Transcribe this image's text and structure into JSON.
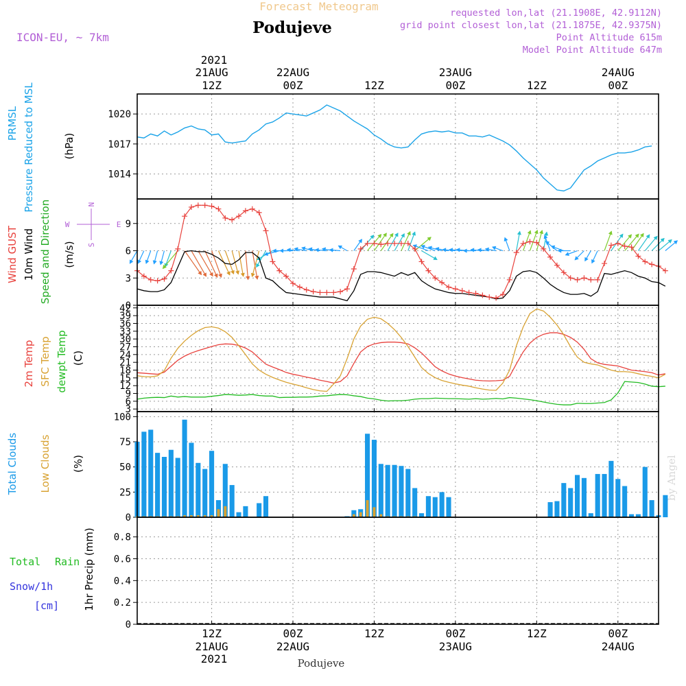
{
  "header": {
    "title": "Forecast Meteogram",
    "location": "Podujeve",
    "model": "ICON-EU, ~ 7km",
    "requested": "requested lon,lat (21.1908E, 42.9112N)",
    "grid_point": "grid point closest lon,lat (21.1875E, 42.9375N)",
    "point_altitude": "Point Altitude 615m",
    "model_altitude": "Model Point Altitude 647m",
    "credit": "by Angel",
    "footer_location": "Podujeve"
  },
  "colors": {
    "pressure": "#1aa3e8",
    "gust": "#e8413c",
    "wind": "#000000",
    "direction": "#22aa22",
    "temp2m": "#e8413c",
    "sfc": "#d8a232",
    "dewpt": "#22bb22",
    "total_clouds": "#1a9ae8",
    "low_clouds": "#d8a232",
    "rain": "#22bb22",
    "snow": "#3333dd",
    "legend_purple": "#b25fd6",
    "title_orange": "#f0c88c"
  },
  "time_axis": {
    "start_hour": 0,
    "end_hour": 77,
    "top_year": "2021",
    "bottom_year": "2021",
    "ticks": [
      {
        "hour": 11,
        "top": [
          "21AUG",
          "12Z"
        ],
        "bottom": [
          "12Z",
          "21AUG"
        ]
      },
      {
        "hour": 23,
        "top": [
          "22AUG",
          "00Z"
        ],
        "bottom": [
          "00Z",
          "22AUG"
        ]
      },
      {
        "hour": 35,
        "top": [
          "12Z"
        ],
        "bottom": [
          "12Z"
        ]
      },
      {
        "hour": 47,
        "top": [
          "23AUG",
          "00Z"
        ],
        "bottom": [
          "00Z",
          "23AUG"
        ]
      },
      {
        "hour": 59,
        "top": [
          "12Z"
        ],
        "bottom": [
          "12Z"
        ]
      },
      {
        "hour": 71,
        "top": [
          "24AUG",
          "00Z"
        ],
        "bottom": [
          "00Z",
          "24AUG"
        ]
      }
    ]
  },
  "chart_data": [
    {
      "type": "line",
      "id": "pressure",
      "title": "PRMSL Pressure Reduced to MSL",
      "ylabel_lines": [
        "PRMSL",
        "Pressure Reduced to MSL"
      ],
      "unit": "(hPa)",
      "ylim": [
        1011.5,
        1022
      ],
      "yticks": [
        1014,
        1017,
        1020
      ],
      "series": [
        {
          "name": "PRMSL",
          "x_start": 0,
          "x_step": 1,
          "values": [
            1017.7,
            1017.6,
            1018.0,
            1017.8,
            1018.3,
            1017.9,
            1018.2,
            1018.6,
            1018.8,
            1018.5,
            1018.4,
            1017.9,
            1018.0,
            1017.2,
            1017.1,
            1017.2,
            1017.3,
            1018.0,
            1018.4,
            1019.0,
            1019.2,
            1019.6,
            1020.1,
            1020.0,
            1019.9,
            1019.8,
            1020.1,
            1020.4,
            1020.9,
            1020.6,
            1020.3,
            1019.8,
            1019.3,
            1018.9,
            1018.5,
            1017.9,
            1017.5,
            1017.0,
            1016.7,
            1016.6,
            1016.7,
            1017.4,
            1018.0,
            1018.2,
            1018.3,
            1018.2,
            1018.3,
            1018.1,
            1018.1,
            1017.8,
            1017.8,
            1017.7,
            1017.9,
            1017.6,
            1017.3,
            1016.9,
            1016.3,
            1015.6,
            1015.0,
            1014.4,
            1013.6,
            1013.0,
            1012.4,
            1012.3,
            1012.6,
            1013.5,
            1014.4,
            1014.8,
            1015.3,
            1015.6,
            1015.9,
            1016.1,
            1016.1,
            1016.2,
            1016.4,
            1016.7,
            1016.8
          ]
        }
      ]
    },
    {
      "type": "line",
      "id": "wind",
      "title": "Wind GUST, 10m Wind Speed and Direction",
      "ylabel_lines": [
        "Wind GUST",
        "10m Wind",
        "Speed and Direction"
      ],
      "unit": "(m/s)",
      "compass": [
        "N",
        "W",
        "E",
        "S"
      ],
      "ylim": [
        0,
        11.7
      ],
      "yticks": [
        0,
        3,
        6,
        9
      ],
      "series": [
        {
          "name": "Wind GUST",
          "x_start": 0,
          "x_step": 1,
          "markers": "plus",
          "values": [
            3.8,
            3.2,
            2.8,
            2.7,
            2.9,
            3.8,
            6.2,
            9.8,
            10.8,
            11.0,
            11.0,
            10.9,
            10.6,
            9.6,
            9.4,
            9.8,
            10.4,
            10.6,
            10.2,
            8.2,
            4.8,
            3.8,
            3.2,
            2.4,
            2.0,
            1.7,
            1.5,
            1.4,
            1.4,
            1.4,
            1.5,
            1.8,
            4.0,
            6.2,
            6.8,
            6.8,
            6.7,
            6.8,
            6.8,
            6.8,
            6.8,
            6.2,
            4.8,
            3.8,
            3.0,
            2.5,
            2.0,
            1.8,
            1.6,
            1.4,
            1.3,
            1.1,
            0.9,
            0.8,
            1.2,
            2.8,
            5.8,
            6.8,
            7.0,
            6.9,
            6.2,
            5.3,
            4.4,
            3.6,
            3.0,
            2.8,
            3.0,
            2.8,
            2.8,
            4.6,
            6.6,
            6.8,
            6.5,
            6.4,
            5.4,
            4.8,
            4.5,
            4.3,
            3.8
          ]
        },
        {
          "name": "10m Wind",
          "x_start": 0,
          "x_step": 1,
          "values": [
            1.8,
            1.6,
            1.5,
            1.5,
            1.7,
            2.5,
            4.2,
            5.9,
            6.0,
            5.9,
            5.9,
            5.6,
            5.2,
            4.6,
            4.5,
            5.0,
            5.8,
            5.8,
            5.2,
            3.0,
            2.7,
            2.0,
            1.4,
            1.3,
            1.2,
            1.1,
            1.0,
            0.9,
            0.9,
            0.9,
            0.7,
            0.5,
            1.6,
            3.4,
            3.7,
            3.7,
            3.6,
            3.4,
            3.2,
            3.6,
            3.3,
            3.6,
            2.7,
            2.2,
            1.8,
            1.6,
            1.4,
            1.3,
            1.3,
            1.2,
            1.1,
            1.0,
            0.9,
            0.7,
            0.8,
            1.6,
            3.2,
            3.7,
            3.8,
            3.6,
            3.0,
            2.3,
            1.8,
            1.4,
            1.2,
            1.2,
            1.3,
            1.0,
            1.5,
            3.5,
            3.4,
            3.6,
            3.8,
            3.6,
            3.2,
            3.0,
            2.6,
            2.5,
            2.1
          ]
        },
        {
          "name": "Direction",
          "baseline": 6,
          "x_start": 0,
          "x_step": 1,
          "deg": [
            30,
            25,
            20,
            15,
            15,
            20,
            40,
            325,
            330,
            330,
            335,
            340,
            335,
            340,
            345,
            350,
            355,
            350,
            15,
            30,
            60,
            75,
            90,
            90,
            95,
            100,
            105,
            100,
            95,
            100,
            95,
            120,
            215,
            220,
            220,
            215,
            215,
            210,
            210,
            205,
            200,
            230,
            300,
            110,
            110,
            105,
            100,
            95,
            95,
            95,
            90,
            95,
            95,
            100,
            110,
            160,
            190,
            200,
            200,
            195,
            190,
            160,
            130,
            110,
            90,
            70,
            45,
            30,
            25,
            200,
            215,
            220,
            220,
            215,
            215,
            220,
            225,
            230,
            230
          ]
        }
      ]
    },
    {
      "type": "line",
      "id": "temperature",
      "title": "2m Temp, SFC Temp, dewpt Temp",
      "ylabel_lines": [
        "2m Temp",
        "SFC Temp",
        "dewpt Temp"
      ],
      "unit": "(C)",
      "ylim": [
        2,
        43
      ],
      "yticks": [
        3,
        6,
        9,
        12,
        15,
        18,
        21,
        24,
        27,
        30,
        33,
        36,
        39,
        42
      ],
      "series": [
        {
          "name": "2m Temp",
          "x_start": 0,
          "x_step": 1,
          "values": [
            17.0,
            16.8,
            16.6,
            16.4,
            17.2,
            19.5,
            21.8,
            23.4,
            24.6,
            25.5,
            26.3,
            27.1,
            27.8,
            28.1,
            28.0,
            27.5,
            26.5,
            25.0,
            22.6,
            20.3,
            19.2,
            18.2,
            17.1,
            16.4,
            15.9,
            15.3,
            14.8,
            14.1,
            13.6,
            13.0,
            13.6,
            15.8,
            20.6,
            25.0,
            27.1,
            28.1,
            28.6,
            28.8,
            28.8,
            28.6,
            28.1,
            26.6,
            24.6,
            22.0,
            19.3,
            17.7,
            16.5,
            15.7,
            15.1,
            14.6,
            14.1,
            13.9,
            13.8,
            13.9,
            14.1,
            15.6,
            20.4,
            25.0,
            28.4,
            30.6,
            31.8,
            32.4,
            32.4,
            31.8,
            30.6,
            28.8,
            26.0,
            22.4,
            20.8,
            20.2,
            19.9,
            19.6,
            18.8,
            18.0,
            17.7,
            17.4,
            17.0,
            16.1,
            16.6
          ]
        },
        {
          "name": "SFC Temp",
          "x_start": 0,
          "x_step": 1,
          "values": [
            15.8,
            15.5,
            15.4,
            15.8,
            17.8,
            22.6,
            26.4,
            29.2,
            31.4,
            33.2,
            34.4,
            34.7,
            34.2,
            32.8,
            30.6,
            27.4,
            24.0,
            20.4,
            18.0,
            16.4,
            15.2,
            14.2,
            13.3,
            12.6,
            12.0,
            11.2,
            10.5,
            10.0,
            9.8,
            12.6,
            15.8,
            22.4,
            30.0,
            35.0,
            37.6,
            38.4,
            37.8,
            36.0,
            33.6,
            30.6,
            27.1,
            23.0,
            19.0,
            16.7,
            15.1,
            14.0,
            13.3,
            12.7,
            12.2,
            11.8,
            11.2,
            10.7,
            10.3,
            10.2,
            13.0,
            18.0,
            27.4,
            34.6,
            39.8,
            41.6,
            40.8,
            38.4,
            35.4,
            31.6,
            27.0,
            23.0,
            21.0,
            20.4,
            20.0,
            19.0,
            18.0,
            17.4,
            17.4,
            17.2,
            16.6,
            16.0,
            15.6,
            15.0,
            16.4
          ]
        },
        {
          "name": "dewpt Temp",
          "x_start": 0,
          "x_step": 1,
          "values": [
            6.8,
            7.2,
            7.4,
            7.5,
            7.4,
            8.0,
            7.6,
            7.8,
            7.6,
            7.6,
            7.6,
            7.9,
            8.2,
            8.6,
            8.5,
            8.3,
            8.4,
            8.6,
            8.2,
            8.0,
            8.0,
            7.4,
            7.5,
            7.5,
            7.6,
            7.6,
            7.7,
            8.0,
            8.1,
            8.4,
            8.6,
            8.5,
            8.1,
            7.8,
            7.2,
            6.9,
            6.4,
            6.1,
            6.2,
            6.2,
            6.4,
            6.8,
            7.0,
            7.0,
            7.2,
            7.1,
            7.0,
            7.0,
            6.9,
            6.8,
            7.0,
            6.8,
            6.9,
            7.1,
            6.9,
            7.4,
            7.2,
            6.9,
            6.6,
            6.2,
            5.7,
            5.2,
            4.8,
            4.6,
            4.6,
            5.2,
            5.1,
            5.1,
            5.3,
            5.5,
            6.5,
            9.2,
            13.6,
            13.4,
            13.2,
            12.6,
            11.8,
            11.6,
            11.8
          ]
        }
      ]
    },
    {
      "type": "bar",
      "id": "clouds",
      "title": "Total Clouds, Low Clouds",
      "ylabel_lines": [
        "Total Clouds",
        "Low Clouds"
      ],
      "unit": "(%)",
      "ylim": [
        0,
        105
      ],
      "yticks": [
        0,
        25,
        50,
        75,
        100
      ],
      "series": [
        {
          "name": "Total Clouds",
          "x_start": 0,
          "x_step": 1,
          "values": [
            75,
            85,
            87,
            64,
            60,
            67,
            59,
            97,
            74,
            54,
            48,
            66,
            17,
            53,
            32,
            5,
            11,
            0,
            14,
            21,
            0,
            0,
            0,
            0,
            0,
            0,
            0,
            0,
            0,
            0,
            0,
            1,
            7,
            8,
            83,
            77,
            53,
            52,
            52,
            51,
            48,
            29,
            4,
            21,
            20,
            25,
            20,
            0,
            0,
            0,
            0,
            0,
            0,
            0,
            0,
            0,
            0,
            0,
            0,
            0,
            0,
            15,
            16,
            34,
            29,
            42,
            39,
            4,
            43,
            43,
            56,
            38,
            31,
            3,
            3,
            50,
            17,
            2,
            22
          ]
        },
        {
          "name": "Low Clouds",
          "x_start": 0,
          "x_step": 1,
          "values": [
            1,
            1,
            1,
            1,
            1,
            1,
            1,
            2,
            2,
            2,
            2,
            2,
            8,
            11,
            0,
            0,
            0,
            0,
            0,
            0,
            0,
            0,
            0,
            0,
            0,
            0,
            0,
            0,
            0,
            0,
            0,
            0,
            3,
            5,
            17,
            10,
            3,
            1,
            1,
            1,
            1,
            1,
            0,
            0,
            0,
            0,
            0,
            0,
            0,
            0,
            0,
            0,
            0,
            0,
            0,
            0,
            0,
            0,
            0,
            0,
            0,
            0,
            0,
            0,
            0,
            0,
            0,
            0,
            0,
            0,
            0,
            0,
            0,
            0,
            0,
            0,
            0,
            0,
            0
          ]
        }
      ]
    },
    {
      "type": "bar",
      "id": "precip",
      "title": "1hr Precip",
      "ylabel_lines": [
        "1hr Precip (mm)"
      ],
      "legend": [
        "Total",
        "Rain",
        "Snow/1h",
        "[cm]"
      ],
      "ylim": [
        0,
        0.98
      ],
      "yticks": [
        0,
        0.2,
        0.4,
        0.6,
        0.8
      ],
      "series": [
        {
          "name": "Total Rain",
          "values": []
        },
        {
          "name": "Snow/1h",
          "values": []
        }
      ]
    }
  ]
}
